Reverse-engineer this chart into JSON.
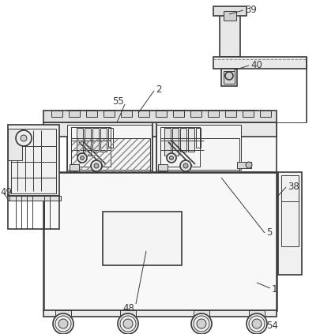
{
  "bg_color": "#ffffff",
  "lc": "#3a3a3a",
  "lw": 1.2,
  "tlw": 0.7,
  "thklw": 1.8,
  "fig_width": 4.06,
  "fig_height": 4.23,
  "dpi": 100
}
